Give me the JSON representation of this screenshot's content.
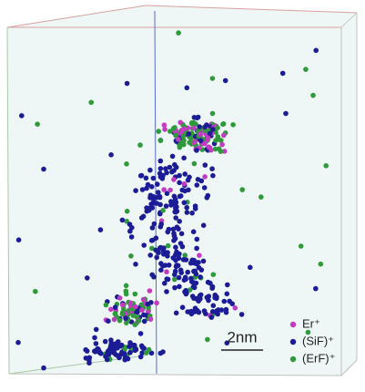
{
  "legend": [
    {
      "label": "Er⁺",
      "color": "#c23cc2"
    },
    {
      "label": "(SiF)⁺",
      "color": "#1c1c96"
    },
    {
      "label": "(ErF)⁺",
      "color": "#2f9a3a"
    }
  ],
  "scale_bar": {
    "label": "2nm"
  }
}
